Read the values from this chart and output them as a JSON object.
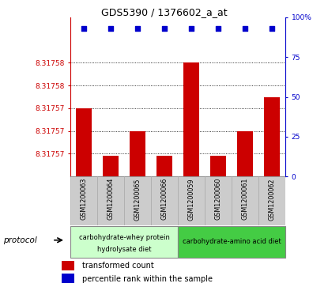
{
  "title": "GDS5390 / 1376602_a_at",
  "samples": [
    "GSM1200063",
    "GSM1200064",
    "GSM1200065",
    "GSM1200066",
    "GSM1200059",
    "GSM1200060",
    "GSM1200061",
    "GSM1200062"
  ],
  "transformed_count": [
    8.317574,
    8.3175698,
    8.317572,
    8.3175698,
    8.317578,
    8.3175698,
    8.317572,
    8.317575
  ],
  "percentile_rank": [
    93,
    93,
    93,
    93,
    93,
    93,
    93,
    93
  ],
  "ymin": 8.317568,
  "ymax": 8.317582,
  "yticks_left_vals": [
    8.31757,
    8.317572,
    8.317574,
    8.317576,
    8.317578
  ],
  "ytick_labels_left": [
    "8.31757",
    "8.31757",
    "8.31757",
    "8.31758",
    "8.31758"
  ],
  "yticks_right_vals": [
    0,
    25,
    50,
    75,
    100
  ],
  "ytick_labels_right": [
    "0",
    "25",
    "50",
    "75",
    "100%"
  ],
  "bar_color": "#cc0000",
  "dot_color": "#0000cc",
  "group1_label_line1": "carbohydrate-whey protein",
  "group1_label_line2": "hydrolysate diet",
  "group2_label": "carbohydrate-amino acid diet",
  "group1_color": "#ccffcc",
  "group2_color": "#44cc44",
  "left_ax_color": "#cc0000",
  "right_ax_color": "#0000cc",
  "legend1_text": "transformed count",
  "legend2_text": "percentile rank within the sample",
  "protocol_label": "protocol",
  "sample_bg": "#cccccc",
  "sample_edge": "#aaaaaa"
}
